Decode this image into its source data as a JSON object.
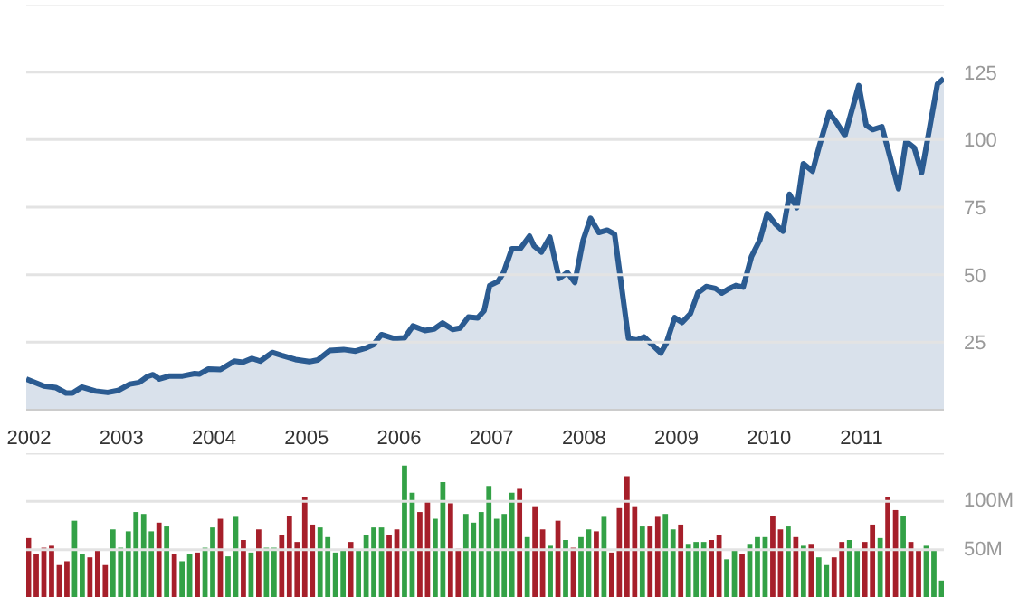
{
  "chart_data": [
    {
      "type": "area",
      "x": [
        2001.97,
        2002.16,
        2002.29,
        2002.4,
        2002.47,
        2002.57,
        2002.72,
        2002.85,
        2002.96,
        2003.09,
        2003.19,
        2003.28,
        2003.34,
        2003.41,
        2003.52,
        2003.66,
        2003.79,
        2003.84,
        2003.94,
        2004.07,
        2004.22,
        2004.31,
        2004.41,
        2004.5,
        2004.63,
        2004.73,
        2004.88,
        2005.03,
        2005.12,
        2005.25,
        2005.4,
        2005.53,
        2005.63,
        2005.72,
        2005.81,
        2005.94,
        2006.06,
        2006.15,
        2006.28,
        2006.38,
        2006.47,
        2006.58,
        2006.66,
        2006.75,
        2006.85,
        2006.92,
        2006.98,
        2007.07,
        2007.13,
        2007.22,
        2007.31,
        2007.41,
        2007.46,
        2007.54,
        2007.63,
        2007.73,
        2007.82,
        2007.9,
        2007.99,
        2008.07,
        2008.16,
        2008.25,
        2008.33,
        2008.48,
        2008.57,
        2008.65,
        2008.83,
        2008.89,
        2008.98,
        2009.06,
        2009.15,
        2009.23,
        2009.32,
        2009.42,
        2009.49,
        2009.57,
        2009.64,
        2009.72,
        2009.81,
        2009.9,
        2009.98,
        2010.07,
        2010.15,
        2010.22,
        2010.3,
        2010.37,
        2010.47,
        2010.54,
        2010.65,
        2010.73,
        2010.82,
        2010.97,
        2011.05,
        2011.12,
        2011.22,
        2011.4,
        2011.48,
        2011.57,
        2011.65,
        2011.82,
        2011.89
      ],
      "series": [
        {
          "color": "#2b5b91",
          "values": [
            11.4,
            8.8,
            8.2,
            6.2,
            6.2,
            8.4,
            6.9,
            6.4,
            7.1,
            9.5,
            10.1,
            12.3,
            13,
            11.4,
            12.5,
            12.5,
            13.4,
            13.2,
            15.1,
            14.9,
            18,
            17.6,
            19,
            18,
            21.2,
            20.1,
            18.6,
            17.8,
            18.4,
            21.9,
            22.3,
            21.7,
            22.7,
            24,
            27.8,
            26.4,
            26.6,
            31,
            29.3,
            29.9,
            32.1,
            29.7,
            30.2,
            34.3,
            34,
            36.7,
            46,
            47.5,
            50.8,
            59.6,
            59.6,
            64.3,
            60.6,
            58.4,
            63.9,
            48.6,
            50.8,
            47.1,
            62.8,
            70.9,
            65.6,
            66.5,
            65,
            26.4,
            25.8,
            26.9,
            21,
            24.7,
            34.1,
            32.3,
            35.6,
            43.2,
            45.6,
            44.9,
            43.2,
            44.9,
            46,
            45.4,
            56.7,
            62.8,
            72.6,
            68.7,
            66.1,
            79.8,
            74.8,
            91.1,
            88.3,
            97.2,
            110,
            106.3,
            101.5,
            120,
            105.3,
            103.7,
            104.8,
            81.8,
            99.4,
            97,
            87.8,
            120.5,
            122.6
          ]
        }
      ],
      "xlim": [
        2001.97,
        2011.89
      ],
      "xticks": [
        2002,
        2003,
        2004,
        2005,
        2006,
        2007,
        2008,
        2009,
        2010,
        2011
      ],
      "ylim": [
        0,
        150
      ],
      "yticks": [
        25,
        50,
        75,
        100,
        125,
        {
          "value": 150,
          "label": null
        }
      ],
      "grid": "y"
    },
    {
      "type": "bar",
      "categories": [
        null,
        null,
        null,
        null,
        null,
        null,
        null,
        null,
        null,
        null,
        null,
        null,
        null,
        null,
        null,
        null,
        null,
        null,
        null,
        null,
        null,
        null,
        null,
        null,
        null,
        null,
        null,
        null,
        null,
        null,
        null,
        null,
        null,
        null,
        null,
        null,
        null,
        null,
        null,
        null,
        null,
        null,
        null,
        null,
        null,
        null,
        null,
        null,
        null,
        null,
        null,
        null,
        null,
        null,
        null,
        null,
        null,
        null,
        null,
        null,
        null,
        null,
        null,
        null,
        null,
        null,
        null,
        null,
        null,
        null,
        null,
        null,
        null,
        null,
        null,
        null,
        null,
        null,
        null,
        null,
        null,
        null,
        null,
        null,
        null,
        null,
        null,
        null,
        null,
        null,
        null,
        null,
        null,
        null,
        null,
        null,
        null,
        null,
        null,
        null,
        null,
        null,
        null,
        null,
        null,
        null,
        null,
        null,
        null,
        null,
        null,
        null,
        null,
        null,
        null,
        null,
        null,
        null,
        null,
        null
      ],
      "values": [
        62,
        45,
        52,
        54,
        34,
        38,
        80,
        45,
        42,
        49,
        34,
        71,
        52,
        69,
        89,
        87,
        69,
        78,
        74,
        45,
        38,
        45,
        47,
        52,
        73,
        82,
        43,
        84,
        60,
        47,
        71,
        52,
        52,
        65,
        85,
        58,
        105,
        76,
        73,
        63,
        47,
        49,
        58,
        49,
        65,
        73,
        73,
        65,
        71,
        137,
        109,
        89,
        100,
        82,
        120,
        98,
        51,
        87,
        78,
        89,
        116,
        82,
        87,
        109,
        113,
        63,
        95,
        71,
        54,
        80,
        60,
        52,
        63,
        71,
        69,
        84,
        47,
        93,
        126,
        95,
        74,
        74,
        84,
        87,
        71,
        76,
        56,
        58,
        58,
        60,
        65,
        40,
        49,
        45,
        56,
        63,
        63,
        85,
        71,
        74,
        63,
        54,
        56,
        42,
        34,
        42,
        58,
        60,
        49,
        58,
        76,
        62,
        105,
        91,
        85,
        58,
        49,
        54,
        49,
        18
      ],
      "colors": [
        "#a61f2a",
        "#a61f2a",
        "#a61f2a",
        "#a61f2a",
        "#a61f2a",
        "#a61f2a",
        "#33a146",
        "#33a146",
        "#a61f2a",
        "#a61f2a",
        "#a61f2a",
        "#33a146",
        "#33a146",
        "#33a146",
        "#33a146",
        "#33a146",
        "#33a146",
        "#a61f2a",
        "#33a146",
        "#a61f2a",
        "#33a146",
        "#33a146",
        "#a61f2a",
        "#33a146",
        "#33a146",
        "#a61f2a",
        "#33a146",
        "#33a146",
        "#a61f2a",
        "#33a146",
        "#a61f2a",
        "#33a146",
        "#33a146",
        "#a61f2a",
        "#a61f2a",
        "#a61f2a",
        "#a61f2a",
        "#a61f2a",
        "#33a146",
        "#33a146",
        "#33a146",
        "#33a146",
        "#a61f2a",
        "#33a146",
        "#33a146",
        "#33a146",
        "#33a146",
        "#a61f2a",
        "#a61f2a",
        "#33a146",
        "#33a146",
        "#a61f2a",
        "#a61f2a",
        "#33a146",
        "#33a146",
        "#a61f2a",
        "#a61f2a",
        "#33a146",
        "#33a146",
        "#33a146",
        "#33a146",
        "#33a146",
        "#33a146",
        "#33a146",
        "#a61f2a",
        "#33a146",
        "#a61f2a",
        "#a61f2a",
        "#33a146",
        "#a61f2a",
        "#33a146",
        "#a61f2a",
        "#33a146",
        "#33a146",
        "#a61f2a",
        "#33a146",
        "#a61f2a",
        "#a61f2a",
        "#a61f2a",
        "#a61f2a",
        "#33a146",
        "#a61f2a",
        "#a61f2a",
        "#33a146",
        "#33a146",
        "#a61f2a",
        "#33a146",
        "#33a146",
        "#33a146",
        "#a61f2a",
        "#a61f2a",
        "#33a146",
        "#33a146",
        "#a61f2a",
        "#33a146",
        "#33a146",
        "#33a146",
        "#a61f2a",
        "#a61f2a",
        "#33a146",
        "#a61f2a",
        "#33a146",
        "#a61f2a",
        "#33a146",
        "#33a146",
        "#a61f2a",
        "#a61f2a",
        "#33a146",
        "#33a146",
        "#a61f2a",
        "#a61f2a",
        "#33a146",
        "#a61f2a",
        "#a61f2a",
        "#33a146",
        "#a61f2a",
        "#a61f2a",
        "#33a146",
        "#33a146",
        "#33a146"
      ],
      "ylim": [
        0,
        150
      ],
      "yticks": [
        {
          "value": 50,
          "label": "50M"
        },
        {
          "value": 100,
          "label": "100M"
        },
        {
          "value": 150,
          "label": null
        }
      ],
      "grid": "y"
    }
  ]
}
